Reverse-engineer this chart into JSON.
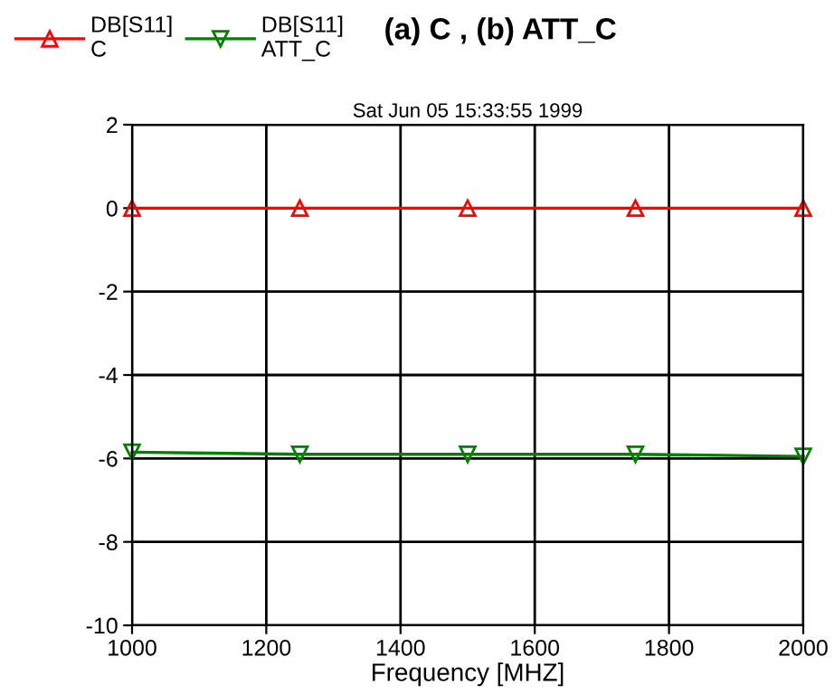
{
  "chart_data": {
    "type": "line",
    "title": "(a) C , (b) ATT_C",
    "subtitle": "Sat Jun 05 15:33:55 1999",
    "xlabel": "Frequency [MHZ]",
    "x": [
      1000,
      1250,
      1500,
      1750,
      2000
    ],
    "series": [
      {
        "name": "DB[S11]\nC",
        "color": "#ff0000",
        "marker": "triangle",
        "values": [
          0,
          0,
          0,
          0,
          0
        ]
      },
      {
        "name": "DB[S11]\nATT_C",
        "color": "#008000",
        "marker": "triangle_down",
        "values": [
          -5.85,
          -5.9,
          -5.9,
          -5.9,
          -5.95
        ]
      }
    ],
    "xlim": [
      1000,
      2000
    ],
    "xticks": [
      1000,
      1200,
      1400,
      1600,
      1800,
      2000
    ],
    "ylim": [
      -10,
      2
    ],
    "yticks": [
      {
        "value": 2,
        "label": "2"
      },
      {
        "value": 0,
        "label": "0"
      },
      {
        "value": -2,
        "label": "-2"
      },
      {
        "value": -4,
        "label": "-4"
      },
      {
        "value": -6,
        "label": "-6"
      },
      {
        "value": -8,
        "label": "-8"
      },
      {
        "value": -10,
        "label": "-10"
      }
    ],
    "grid": true,
    "legend": "top left",
    "line_style": "solid"
  }
}
